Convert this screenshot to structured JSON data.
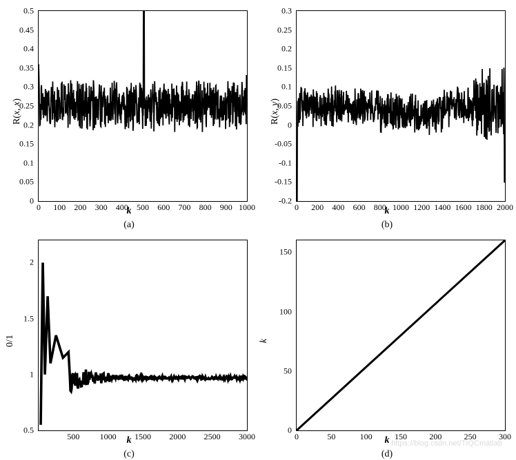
{
  "figure": {
    "background_color": "#ffffff",
    "line_color": "#000000",
    "border_color": "#000000",
    "font_family": "Times New Roman",
    "label_fontsize": 14,
    "tick_fontsize": 12,
    "watermark": "https://blog.csdn.net/TIQCmatlab"
  },
  "panels": {
    "a": {
      "type": "line_noisy",
      "xlabel": "k",
      "ylabel_html": "R(<span class='var'>x</span>, <span class='var'>x</span>)",
      "caption": "(a)",
      "xlim": [
        0,
        1000
      ],
      "ylim": [
        0,
        0.5
      ],
      "xticks": [
        0,
        100,
        200,
        300,
        400,
        500,
        600,
        700,
        800,
        900,
        1000
      ],
      "yticks": [
        0,
        0.05,
        0.1,
        0.15,
        0.2,
        0.25,
        0.3,
        0.35,
        0.4,
        0.45,
        0.5
      ],
      "series": {
        "mean": 0.25,
        "noise_amp": 0.05,
        "line_width": 0.6,
        "spike": {
          "x": 505,
          "y": 0.5
        },
        "start_spike": {
          "x": 2,
          "y": 0.36
        },
        "end_spike": {
          "x": 998,
          "y": 0.33
        }
      }
    },
    "b": {
      "type": "line_noisy",
      "xlabel": "k",
      "ylabel_html": "R(<span class='var'>x</span>, <span class='var'>y</span>)",
      "caption": "(b)",
      "xlim": [
        0,
        2000
      ],
      "ylim": [
        -0.2,
        0.3
      ],
      "xticks": [
        0,
        200,
        400,
        600,
        800,
        1000,
        1200,
        1400,
        1600,
        1800,
        2000
      ],
      "yticks": [
        -0.2,
        -0.15,
        -0.1,
        -0.05,
        0,
        0.05,
        0.1,
        0.15,
        0.2,
        0.25,
        0.3
      ],
      "series": {
        "mean": 0.05,
        "noise_amp": 0.04,
        "line_width": 0.6,
        "start_spike": {
          "x": 5,
          "y": -0.14
        },
        "end_spike": {
          "x": 1995,
          "y": -0.15
        },
        "mid_dip_range": [
          800,
          1400
        ],
        "mid_dip_mean": 0.03,
        "end_bulge_range": [
          1700,
          2000
        ],
        "end_bulge_amp": 0.07
      }
    },
    "c": {
      "type": "line_decay",
      "xlabel": "k",
      "ylabel_html": "0/1",
      "caption": "(c)",
      "xlim": [
        0,
        3000
      ],
      "ylim": [
        0.5,
        2.2
      ],
      "xticks": [
        500,
        1000,
        1500,
        2000,
        2500,
        3000
      ],
      "yticks": [
        0.5,
        1,
        1.5,
        2
      ],
      "ytick_labels": [
        "0.5",
        "1",
        "1.5",
        "2"
      ],
      "series": {
        "asymptote": 0.97,
        "initial_spikes": [
          {
            "x": 30,
            "y": 0.55
          },
          {
            "x": 60,
            "y": 2.0
          },
          {
            "x": 90,
            "y": 1.0
          },
          {
            "x": 130,
            "y": 1.7
          },
          {
            "x": 170,
            "y": 1.1
          },
          {
            "x": 250,
            "y": 1.35
          },
          {
            "x": 350,
            "y": 1.15
          },
          {
            "x": 430,
            "y": 1.2
          }
        ],
        "line_width": 1.2
      }
    },
    "d": {
      "type": "line_identity",
      "xlabel": "k",
      "ylabel_html": "<span class='var'>k</span>",
      "caption": "(d)",
      "xlim": [
        0,
        300
      ],
      "ylim": [
        0,
        160
      ],
      "xticks": [
        0,
        50,
        100,
        150,
        200,
        250,
        300
      ],
      "yticks": [
        0,
        50,
        100,
        150
      ],
      "series": {
        "start": {
          "x": 0,
          "y": 0
        },
        "end": {
          "x": 300,
          "y": 160
        },
        "line_width": 1
      }
    }
  }
}
